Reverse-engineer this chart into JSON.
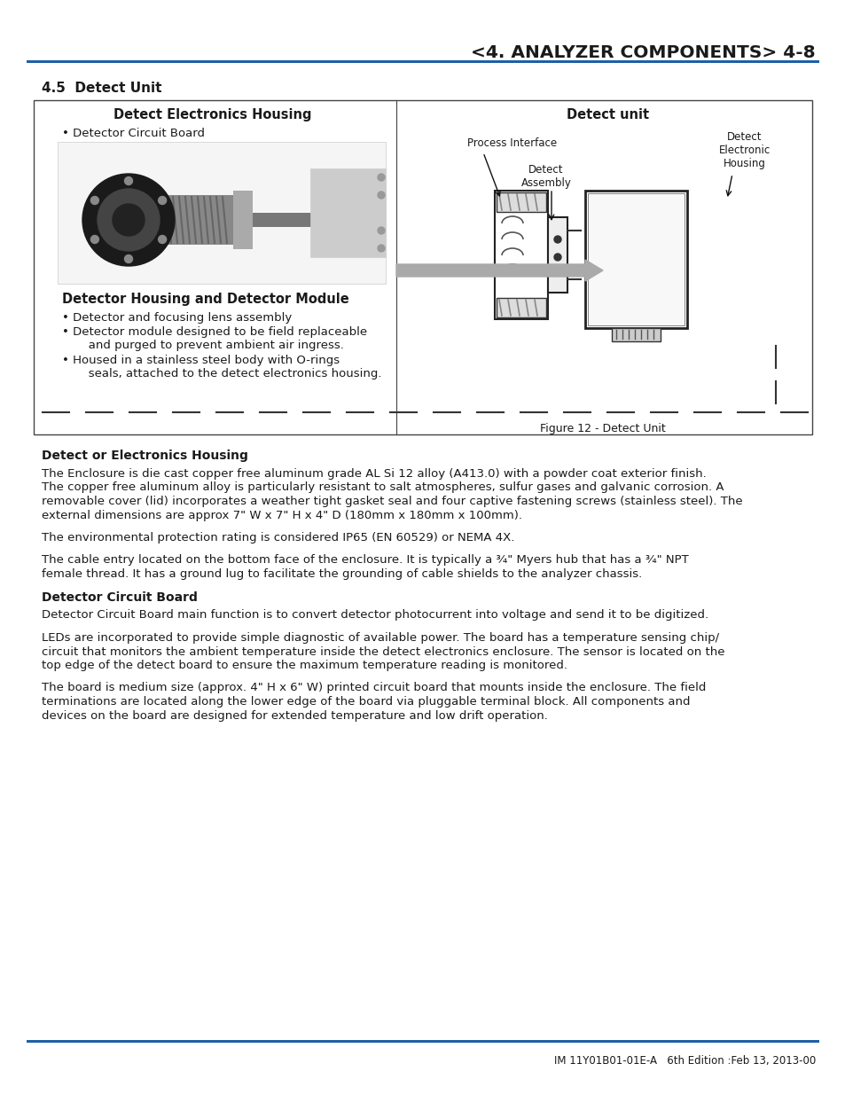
{
  "title": "<4. ANALYZER COMPONENTS> 4-8",
  "title_color": "#1a1a1a",
  "header_line_color": "#1f5fa6",
  "footer_line_color": "#1f5fa6",
  "footer_text": "IM 11Y01B01-01E-A   6th Edition :Feb 13, 2013-00",
  "section_heading": "4.5  Detect Unit",
  "box_left_heading": "Detect Electronics Housing",
  "box_left_bullet1": "Detector Circuit Board",
  "box_left_subheading": "Detector Housing and Detector Module",
  "box_left_bullets": [
    "Detector and focusing lens assembly",
    "Detector module designed to be field replaceable",
    "    and purged to prevent ambient air ingress.",
    "Housed in a stainless steel body with O-rings",
    "    seals, attached to the detect electronics housing."
  ],
  "box_right_heading": "Detect unit",
  "label_process_interface": "Process Interface",
  "label_detect_assembly": "Detect\nAssembly",
  "label_detect_electronic_housing": "Detect\nElectronic\nHousing",
  "figure_caption": "Figure 12 - Detect Unit",
  "body_heading1": "Detect or Electronics Housing",
  "body_para1_lines": [
    "The Enclosure is die cast copper free aluminum grade AL Si 12 alloy (A413.0) with a powder coat exterior finish.",
    "The copper free aluminum alloy is particularly resistant to salt atmospheres, sulfur gases and galvanic corrosion. A",
    "removable cover (lid) incorporates a weather tight gasket seal and four captive fastening screws (stainless steel). The",
    "external dimensions are approx 7\" W x 7\" H x 4\" D (180mm x 180mm x 100mm)."
  ],
  "body_para2": "The environmental protection rating is considered IP65 (EN 60529) or NEMA 4X.",
  "body_para3_lines": [
    "The cable entry located on the bottom face of the enclosure. It is typically a ¾\" Myers hub that has a ¾\" NPT",
    "female thread. It has a ground lug to facilitate the grounding of cable shields to the analyzer chassis."
  ],
  "body_heading2": "Detector Circuit Board",
  "body_para4": "Detector Circuit Board main function is to convert detector photocurrent into voltage and send it to be digitized.",
  "body_para5_lines": [
    "LEDs are incorporated to provide simple diagnostic of available power. The board has a temperature sensing chip/",
    "circuit that monitors the ambient temperature inside the detect electronics enclosure. The sensor is located on the",
    "top edge of the detect board to ensure the maximum temperature reading is monitored."
  ],
  "body_para6_lines": [
    "The board is medium size (approx. 4\" H x 6\" W) printed circuit board that mounts inside the enclosure. The field",
    "terminations are located along the lower edge of the board via pluggable terminal block. All components and",
    "devices on the board are designed for extended temperature and low drift operation."
  ],
  "bg_color": "#ffffff",
  "text_color": "#1a1a1a",
  "box_border_color": "#444444",
  "header_line_color2": "#1f5fa6"
}
